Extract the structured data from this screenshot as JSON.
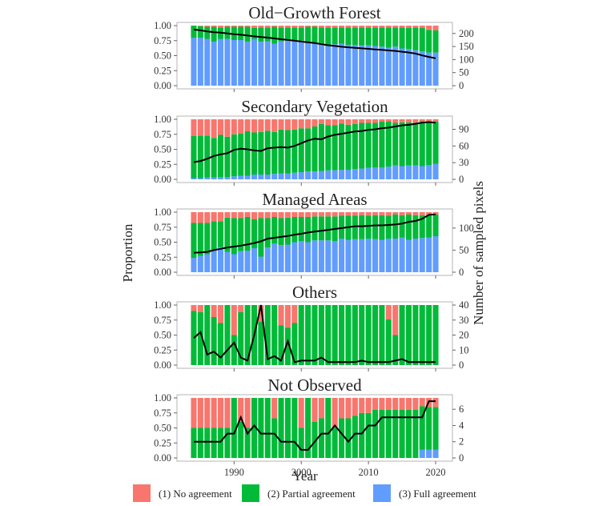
{
  "chart_data": {
    "type": "bar",
    "stacked": true,
    "years": [
      1984,
      1985,
      1986,
      1987,
      1988,
      1989,
      1990,
      1991,
      1992,
      1993,
      1994,
      1995,
      1996,
      1997,
      1998,
      1999,
      2000,
      2001,
      2002,
      2003,
      2004,
      2005,
      2006,
      2007,
      2008,
      2009,
      2010,
      2011,
      2012,
      2013,
      2014,
      2015,
      2016,
      2017,
      2018,
      2019,
      2020
    ],
    "xlabel": "Year",
    "ylabel": "Proportion",
    "y2label": "Number of sampled pixels",
    "x_ticks": [
      "1990",
      "2000",
      "2010",
      "2020"
    ],
    "y_ticks": [
      "0.00",
      "0.25",
      "0.50",
      "0.75",
      "1.00"
    ],
    "legend": [
      {
        "label": "(1) No agreement",
        "color": "#f8766d"
      },
      {
        "label": "(2) Partial agreement",
        "color": "#00ba38"
      },
      {
        "label": "(3) Full agreement",
        "color": "#619cff"
      }
    ],
    "panels": [
      {
        "title": "Old−Growth Forest",
        "y2_ticks": [
          "0",
          "50",
          "100",
          "150",
          "200"
        ],
        "y2_max": 230,
        "full": [
          0.8,
          0.8,
          0.78,
          0.73,
          0.78,
          0.78,
          0.76,
          0.76,
          0.73,
          0.78,
          0.73,
          0.74,
          0.7,
          0.74,
          0.76,
          0.74,
          0.75,
          0.72,
          0.71,
          0.7,
          0.66,
          0.69,
          0.7,
          0.68,
          0.68,
          0.67,
          0.67,
          0.66,
          0.65,
          0.63,
          0.65,
          0.62,
          0.61,
          0.59,
          0.57,
          0.55,
          0.55
        ],
        "partial": [
          0.2,
          0.19,
          0.2,
          0.25,
          0.19,
          0.2,
          0.22,
          0.22,
          0.25,
          0.18,
          0.24,
          0.23,
          0.28,
          0.23,
          0.21,
          0.23,
          0.22,
          0.26,
          0.27,
          0.27,
          0.31,
          0.28,
          0.27,
          0.29,
          0.29,
          0.3,
          0.3,
          0.31,
          0.32,
          0.34,
          0.32,
          0.35,
          0.35,
          0.38,
          0.39,
          0.38,
          0.37
        ],
        "count": [
          215,
          212,
          208,
          205,
          203,
          200,
          197,
          195,
          192,
          189,
          186,
          184,
          181,
          178,
          175,
          172,
          169,
          166,
          163,
          159,
          155,
          152,
          149,
          147,
          145,
          143,
          141,
          139,
          137,
          135,
          133,
          130,
          127,
          123,
          116,
          110,
          105
        ]
      },
      {
        "title": "Secondary Vegetation",
        "y2_ticks": [
          "0",
          "30",
          "60",
          "90"
        ],
        "y2_max": 108,
        "full": [
          0.02,
          0.02,
          0.03,
          0.03,
          0.04,
          0.04,
          0.05,
          0.06,
          0.06,
          0.08,
          0.08,
          0.08,
          0.09,
          0.1,
          0.1,
          0.11,
          0.12,
          0.13,
          0.13,
          0.14,
          0.15,
          0.15,
          0.16,
          0.16,
          0.17,
          0.18,
          0.19,
          0.2,
          0.2,
          0.21,
          0.23,
          0.22,
          0.23,
          0.23,
          0.22,
          0.24,
          0.26
        ],
        "partial": [
          0.7,
          0.71,
          0.7,
          0.66,
          0.7,
          0.67,
          0.7,
          0.7,
          0.74,
          0.7,
          0.71,
          0.73,
          0.7,
          0.73,
          0.72,
          0.72,
          0.73,
          0.72,
          0.75,
          0.78,
          0.75,
          0.75,
          0.77,
          0.75,
          0.75,
          0.76,
          0.75,
          0.74,
          0.76,
          0.75,
          0.71,
          0.73,
          0.72,
          0.71,
          0.75,
          0.73,
          0.7
        ],
        "count": [
          31,
          33,
          37,
          42,
          45,
          47,
          53,
          55,
          54,
          52,
          51,
          56,
          57,
          58,
          57,
          60,
          65,
          70,
          73,
          72,
          77,
          80,
          82,
          84,
          86,
          87,
          89,
          90,
          92,
          93,
          95,
          97,
          98,
          100,
          102,
          103,
          102
        ]
      },
      {
        "title": "Managed Areas",
        "y2_ticks": [
          "0",
          "50",
          "100"
        ],
        "y2_max": 136,
        "full": [
          0.24,
          0.27,
          0.3,
          0.38,
          0.42,
          0.34,
          0.3,
          0.35,
          0.36,
          0.4,
          0.26,
          0.41,
          0.48,
          0.45,
          0.46,
          0.5,
          0.52,
          0.5,
          0.53,
          0.53,
          0.53,
          0.52,
          0.56,
          0.54,
          0.55,
          0.55,
          0.56,
          0.55,
          0.54,
          0.56,
          0.56,
          0.58,
          0.54,
          0.56,
          0.57,
          0.58,
          0.6
        ],
        "partial": [
          0.58,
          0.55,
          0.52,
          0.47,
          0.43,
          0.57,
          0.6,
          0.55,
          0.56,
          0.48,
          0.64,
          0.49,
          0.44,
          0.45,
          0.45,
          0.42,
          0.4,
          0.42,
          0.4,
          0.4,
          0.4,
          0.41,
          0.38,
          0.4,
          0.39,
          0.4,
          0.38,
          0.4,
          0.41,
          0.38,
          0.4,
          0.37,
          0.42,
          0.39,
          0.38,
          0.37,
          0.36
        ],
        "count": [
          44,
          45,
          46,
          50,
          53,
          56,
          58,
          60,
          63,
          66,
          70,
          76,
          78,
          80,
          82,
          85,
          87,
          90,
          92,
          94,
          96,
          98,
          100,
          102,
          104,
          104,
          105,
          106,
          106,
          107,
          108,
          110,
          114,
          116,
          121,
          130,
          131
        ]
      },
      {
        "title": "Others",
        "y2_ticks": [
          "0",
          "10",
          "20",
          "30",
          "40"
        ],
        "y2_max": 40,
        "full": [
          0,
          0,
          0,
          0,
          0,
          0,
          0,
          0,
          0,
          0,
          0,
          0,
          0,
          0,
          0,
          0,
          0,
          0,
          0,
          0,
          0,
          0,
          0,
          0,
          0,
          0,
          0,
          0,
          0,
          0,
          0,
          0,
          0,
          0,
          0,
          0,
          0
        ],
        "partial": [
          0.9,
          0.88,
          1.0,
          0.8,
          0.7,
          1.0,
          0.5,
          0.88,
          1.0,
          1.0,
          0.72,
          1.0,
          1.0,
          0.66,
          0.62,
          0.7,
          1.0,
          1.0,
          1.0,
          1.0,
          1.0,
          1.0,
          1.0,
          1.0,
          1.0,
          1.0,
          1.0,
          1.0,
          1.0,
          0.76,
          0.5,
          1.0,
          1.0,
          1.0,
          1.0,
          1.0,
          1.0
        ],
        "count": [
          18,
          22,
          7,
          9,
          5,
          10,
          15,
          5,
          3,
          20,
          40,
          4,
          6,
          3,
          16,
          2,
          3,
          3,
          3,
          5,
          2,
          2,
          2,
          2,
          2,
          3,
          2,
          2,
          2,
          2,
          3,
          4,
          2,
          2,
          2,
          2,
          2
        ]
      },
      {
        "title": "Not Observed",
        "y2_ticks": [
          "0",
          "2",
          "4",
          "6"
        ],
        "y2_max": 7.4,
        "full": [
          0,
          0,
          0,
          0,
          0,
          0,
          0,
          0,
          0,
          0,
          0,
          0,
          0,
          0,
          0,
          0,
          0,
          0,
          0,
          0,
          0,
          0,
          0,
          0,
          0,
          0,
          0,
          0,
          0,
          0,
          0,
          0,
          0,
          0,
          0.14,
          0.14,
          0.14
        ],
        "partial": [
          0.5,
          0.5,
          0.5,
          0.5,
          0.5,
          0.5,
          1.0,
          0.6,
          0.5,
          1.0,
          1.0,
          1.0,
          0.66,
          1.0,
          1.0,
          1.0,
          0.5,
          1.0,
          0.6,
          0.66,
          1.0,
          0.5,
          0.66,
          0.66,
          0.7,
          0.75,
          0.75,
          0.8,
          0.8,
          0.8,
          0.8,
          0.8,
          0.8,
          0.8,
          0.72,
          0.71,
          0.71
        ],
        "count": [
          2,
          2,
          2,
          2,
          2,
          3,
          3,
          5,
          3,
          4,
          3,
          3,
          3,
          2,
          2,
          2,
          1,
          1,
          2,
          3,
          3,
          4,
          3,
          2,
          3,
          3,
          4,
          4,
          5,
          5,
          5,
          5,
          5,
          5,
          5,
          7,
          7
        ]
      }
    ]
  }
}
